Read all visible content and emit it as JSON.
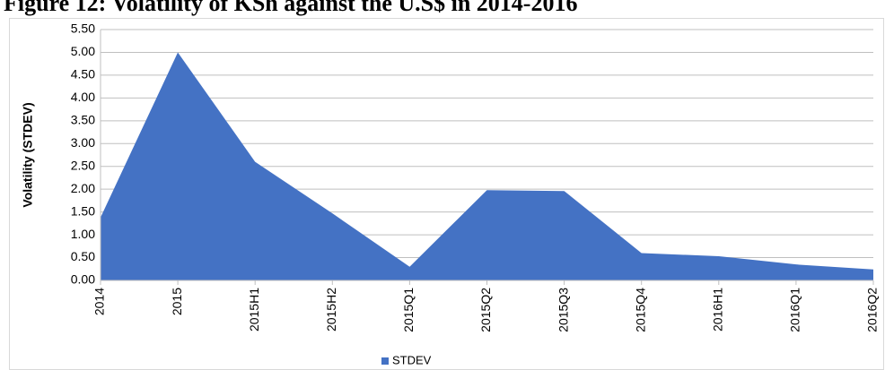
{
  "chart_data": {
    "type": "area",
    "title": "Figure 12: Volatility of KSh against the U.S$ in 2014-2016",
    "y_label": "Volatility (STDEV)",
    "categories": [
      "2014",
      "2015",
      "2015H1",
      "2015H2",
      "2015Q1",
      "2015Q2",
      "2015Q3",
      "2015Q4",
      "2016H1",
      "2016Q1",
      "2016Q2"
    ],
    "series": [
      {
        "name": "STDEV",
        "color": "#4472c4",
        "values": [
          1.38,
          5.0,
          2.6,
          1.47,
          0.3,
          1.98,
          1.96,
          0.6,
          0.53,
          0.35,
          0.24
        ]
      }
    ],
    "ylim": [
      0,
      5.5
    ],
    "yticks": [
      {
        "value": 0,
        "label": "0.00"
      },
      {
        "value": 0.5,
        "label": "0.50"
      },
      {
        "value": 1,
        "label": "1.00"
      },
      {
        "value": 1.5,
        "label": "1.50"
      },
      {
        "value": 2,
        "label": "2.00"
      },
      {
        "value": 2.5,
        "label": "2.50"
      },
      {
        "value": 3,
        "label": "3.00"
      },
      {
        "value": 3.5,
        "label": "3.50"
      },
      {
        "value": 4,
        "label": "4.00"
      },
      {
        "value": 4.5,
        "label": "4.50"
      },
      {
        "value": 5,
        "label": "5.00"
      },
      {
        "value": 5.5,
        "label": "5.50"
      }
    ],
    "grid": true,
    "legend": "bottom"
  }
}
